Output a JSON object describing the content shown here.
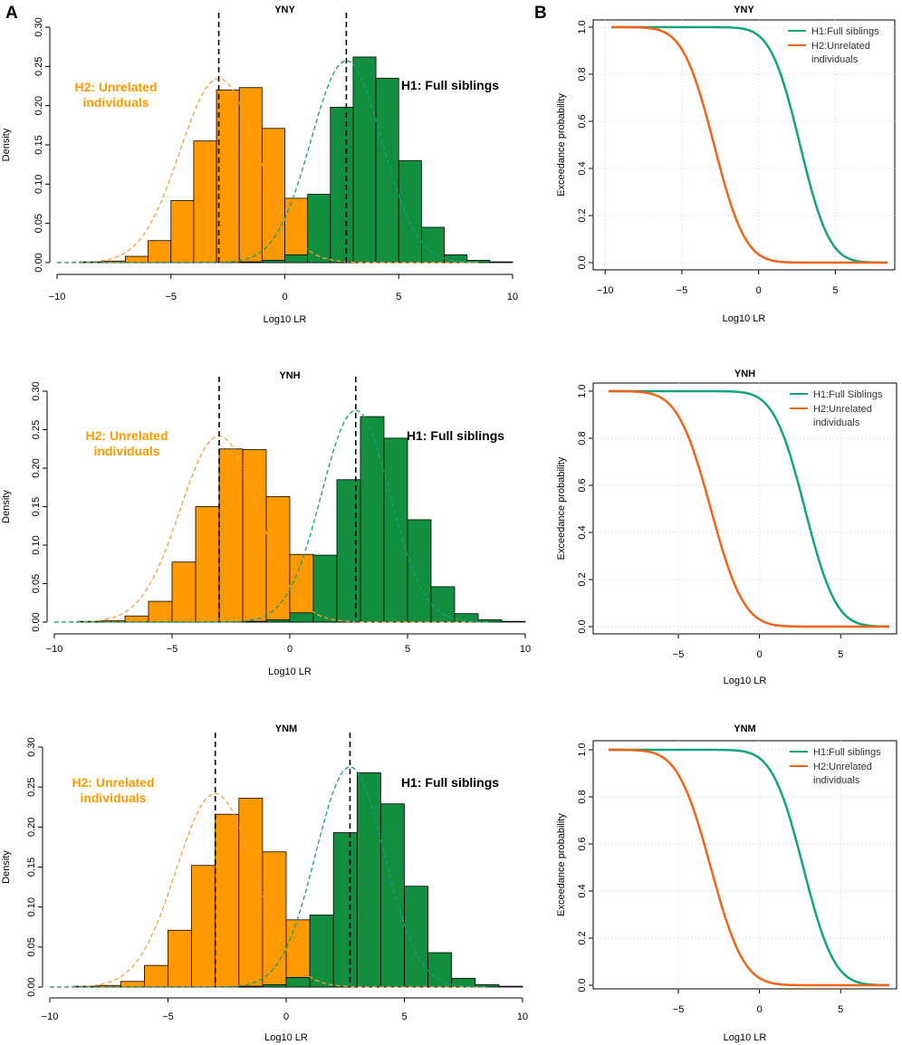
{
  "panel_labels": [
    "A",
    "B"
  ],
  "colors": {
    "h2": "#ff9900",
    "h1": "#118f3e",
    "h1_line": "#12a37f",
    "h2_line": "#f06419",
    "h1_dash": "#14a07a",
    "h2_dash": "#f5a03c"
  },
  "chart_data": [
    {
      "type": "bar",
      "title": "YNY",
      "xlabel": "Log10 LR",
      "ylabel": "Density",
      "xlim": [
        -10,
        10
      ],
      "ylim": [
        0,
        0.3
      ],
      "xticks": [
        "−10",
        "−5",
        "0",
        "5",
        "10"
      ],
      "yticks": [
        "0.00",
        "0.05",
        "0.10",
        "0.15",
        "0.20",
        "0.25",
        "0.30"
      ],
      "annotations": {
        "h2": [
          "H2: Unrelated",
          "individuals"
        ],
        "h1": "H1: Full siblings"
      },
      "means": [
        -2.9,
        2.7
      ],
      "series": [
        {
          "name": "H2: Unrelated individuals",
          "bin_start": -9,
          "bin_width": 1,
          "values": [
            0.001,
            0.002,
            0.008,
            0.028,
            0.079,
            0.155,
            0.22,
            0.223,
            0.171,
            0.082,
            0.031,
            0.004,
            0.001
          ]
        },
        {
          "name": "H1: Full siblings",
          "bin_start": -2,
          "bin_width": 1,
          "values": [
            0.001,
            0.003,
            0.01,
            0.087,
            0.198,
            0.262,
            0.235,
            0.13,
            0.045,
            0.01,
            0.003,
            0.001
          ]
        }
      ],
      "fits": [
        {
          "mean": -2.9,
          "sd": 1.7
        },
        {
          "mean": 2.7,
          "sd": 1.55
        }
      ]
    },
    {
      "type": "line",
      "title": "YNY",
      "xlabel": "Log10 LR",
      "ylabel": "Exceedance probability",
      "xlim": [
        -10.5,
        8.5
      ],
      "ylim": [
        0,
        1.0
      ],
      "xticks": [
        "−10",
        "−5",
        "0",
        "5"
      ],
      "yticks": [
        "0.0",
        "0.2",
        "0.4",
        "0.6",
        "0.8",
        "1.0"
      ],
      "legend": [
        "H1:Full siblings",
        "H2:Unrelated",
        "individuals"
      ],
      "series": [
        {
          "name": "H1",
          "x_range": [
            -9.6,
            8.4
          ],
          "mean": 2.7,
          "sd": 1.5
        },
        {
          "name": "H2",
          "x_range": [
            -9.6,
            8.4
          ],
          "mean": -2.9,
          "sd": 1.6
        }
      ]
    },
    {
      "type": "bar",
      "title": "YNH",
      "xlabel": "Log10 LR",
      "ylabel": "Density",
      "xlim": [
        -10,
        10
      ],
      "ylim": [
        0,
        0.3
      ],
      "xticks": [
        "−10",
        "−5",
        "0",
        "5",
        "10"
      ],
      "yticks": [
        "0.00",
        "0.05",
        "0.10",
        "0.15",
        "0.20",
        "0.25",
        "0.30"
      ],
      "annotations": {
        "h2": [
          "H2: Unrelated",
          "individuals"
        ],
        "h1": "H1: Full siblings"
      },
      "means": [
        -3.0,
        2.8
      ],
      "series": [
        {
          "name": "H2: Unrelated individuals",
          "bin_start": -9,
          "bin_width": 1,
          "values": [
            0.001,
            0.002,
            0.008,
            0.027,
            0.078,
            0.15,
            0.225,
            0.224,
            0.163,
            0.088,
            0.029,
            0.005,
            0.001
          ]
        },
        {
          "name": "H1: Full siblings",
          "bin_start": -2,
          "bin_width": 1,
          "values": [
            0.001,
            0.003,
            0.012,
            0.087,
            0.185,
            0.267,
            0.239,
            0.133,
            0.046,
            0.011,
            0.003,
            0.001
          ]
        }
      ],
      "fits": [
        {
          "mean": -3.0,
          "sd": 1.65
        },
        {
          "mean": 2.8,
          "sd": 1.45
        }
      ]
    },
    {
      "type": "line",
      "title": "YNH",
      "xlabel": "Log10 LR",
      "ylabel": "Exceedance probability",
      "xlim": [
        -10,
        8.5
      ],
      "ylim": [
        0,
        1.0
      ],
      "xticks": [
        "−5",
        "0",
        "5"
      ],
      "yticks": [
        "0.0",
        "0.2",
        "0.4",
        "0.6",
        "0.8",
        "1.0"
      ],
      "legend": [
        "H1:Full Siblings",
        "H2:Unrelated",
        "individuals"
      ],
      "series": [
        {
          "name": "H1",
          "x_range": [
            -9.3,
            8.0
          ],
          "mean": 2.8,
          "sd": 1.5
        },
        {
          "name": "H2",
          "x_range": [
            -9.3,
            8.0
          ],
          "mean": -3.0,
          "sd": 1.6
        }
      ]
    },
    {
      "type": "bar",
      "title": "YNM",
      "xlabel": "Log10 LR",
      "ylabel": "Density",
      "xlim": [
        -10,
        10
      ],
      "ylim": [
        0,
        0.3
      ],
      "xticks": [
        "−10",
        "−5",
        "0",
        "5",
        "10"
      ],
      "yticks": [
        "0.00",
        "0.05",
        "0.10",
        "0.15",
        "0.20",
        "0.25",
        "0.30"
      ],
      "annotations": {
        "h2": [
          "H2: Unrelated",
          "individuals"
        ],
        "h1": "H1: Full siblings"
      },
      "means": [
        -3.0,
        2.7
      ],
      "series": [
        {
          "name": "H2: Unrelated individuals",
          "bin_start": -9,
          "bin_width": 1,
          "values": [
            0.001,
            0.002,
            0.007,
            0.027,
            0.071,
            0.152,
            0.216,
            0.236,
            0.169,
            0.084,
            0.03,
            0.006,
            0.001
          ]
        },
        {
          "name": "H1: Full siblings",
          "bin_start": -2,
          "bin_width": 1,
          "values": [
            0.001,
            0.003,
            0.012,
            0.09,
            0.193,
            0.268,
            0.229,
            0.126,
            0.043,
            0.011,
            0.003,
            0.001
          ]
        }
      ],
      "fits": [
        {
          "mean": -3.0,
          "sd": 1.65
        },
        {
          "mean": 2.7,
          "sd": 1.45
        }
      ]
    },
    {
      "type": "line",
      "title": "YNM",
      "xlabel": "Log10 LR",
      "ylabel": "Exceedance probability",
      "xlim": [
        -10,
        8.5
      ],
      "ylim": [
        0,
        1.0
      ],
      "xticks": [
        "−5",
        "0",
        "5"
      ],
      "yticks": [
        "0.0",
        "0.2",
        "0.4",
        "0.6",
        "0.8",
        "1.0"
      ],
      "legend": [
        "H1:Full siblings",
        "H2:Unrelated",
        "individuals"
      ],
      "series": [
        {
          "name": "H1",
          "x_range": [
            -9.3,
            8.0
          ],
          "mean": 2.7,
          "sd": 1.5
        },
        {
          "name": "H2",
          "x_range": [
            -9.3,
            8.0
          ],
          "mean": -3.0,
          "sd": 1.6
        }
      ]
    }
  ]
}
